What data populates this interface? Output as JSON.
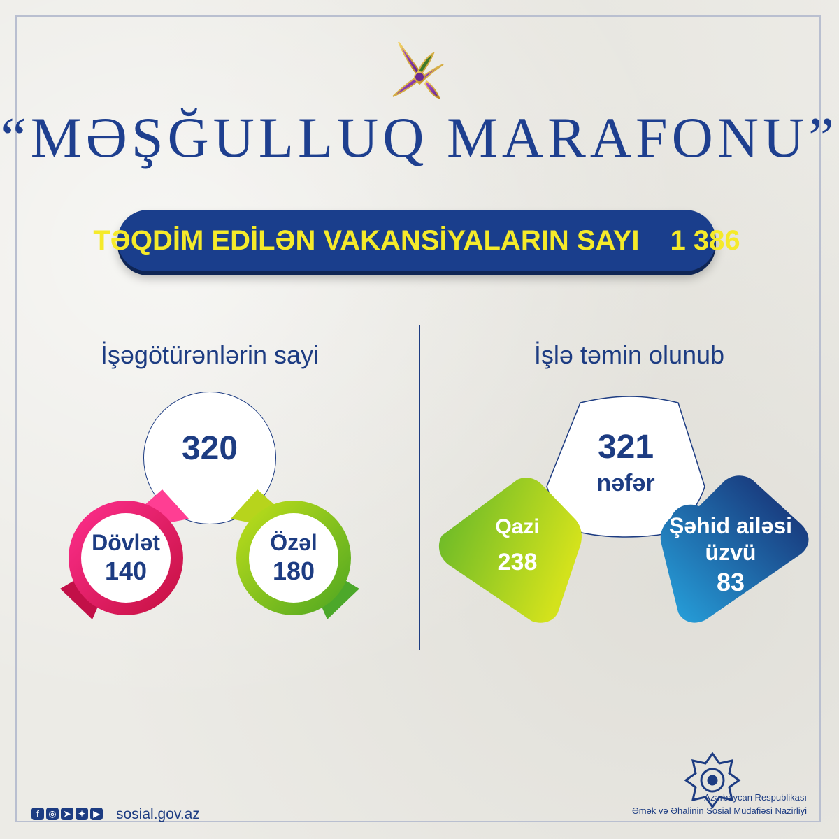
{
  "title": "“MƏŞĞULLUQ MARAFONU”",
  "banner": {
    "label": "TƏQDİM EDİLƏN VAKANSİYALARIN SAYI",
    "value": "1 386"
  },
  "employers": {
    "heading": "İşəgötürənlərin sayi",
    "total": "320",
    "state": {
      "label": "Dövlət",
      "value": "140"
    },
    "private": {
      "label": "Özəl",
      "value": "180"
    }
  },
  "employed": {
    "heading": "İşlə təmin olunub",
    "total": "321",
    "unit": "nəfər",
    "veterans": {
      "label": "Qazi",
      "value": "238"
    },
    "martyr_family": {
      "label_line1": "Şəhid ailəsi",
      "label_line2": "üzvü",
      "value": "83"
    }
  },
  "footer": {
    "social_icons": [
      "facebook-icon",
      "instagram-icon",
      "telegram-icon",
      "twitter-icon",
      "youtube-icon"
    ],
    "website": "sosial.gov.az",
    "ministry_line1": "Azərbaycan Respublikası",
    "ministry_line2": "Əmək və Əhalinin Sosial Müdafiəsi Nazirliyi"
  },
  "colors": {
    "navy": "#1d3c82",
    "yellow": "#f5ea2a",
    "pink": "#e4157a",
    "green": "#8cc63f",
    "blue": "#1d8fd1"
  }
}
